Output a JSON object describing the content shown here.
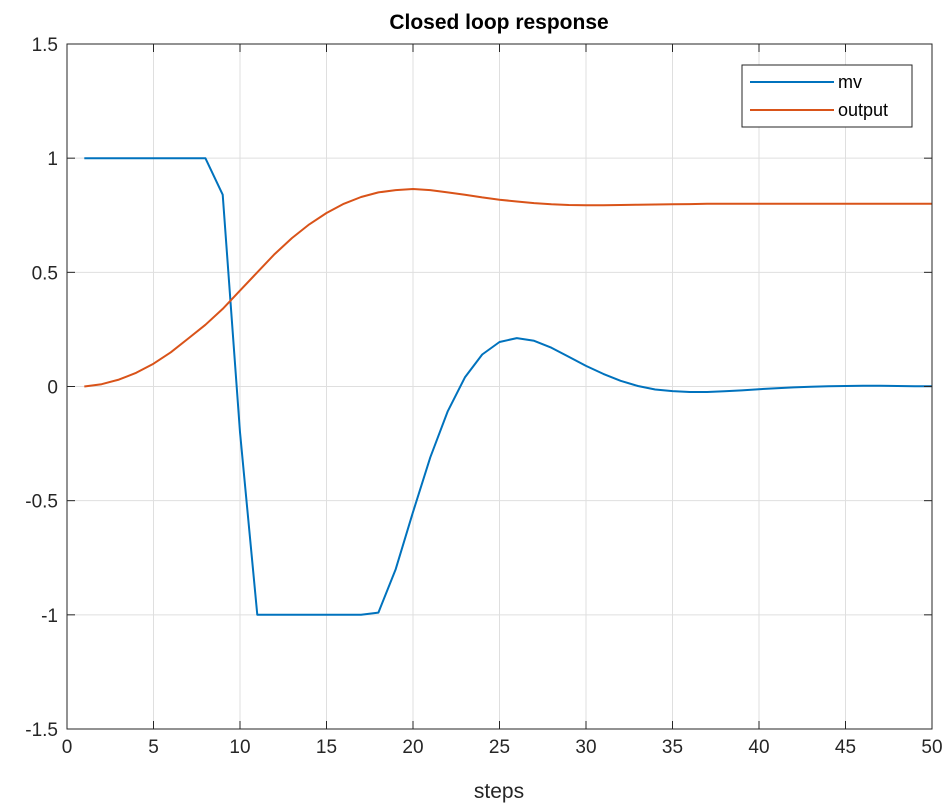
{
  "chart_data": {
    "type": "line",
    "title": "Closed loop response",
    "xlabel": "steps",
    "ylabel": "",
    "xlim": [
      0,
      50
    ],
    "ylim": [
      -1.5,
      1.5
    ],
    "xticks": [
      "0",
      "5",
      "10",
      "15",
      "20",
      "25",
      "30",
      "35",
      "40",
      "45",
      "50"
    ],
    "yticks": [
      "-1.5",
      "-1",
      "-0.5",
      "0",
      "0.5",
      "1",
      "1.5"
    ],
    "grid": true,
    "legend_position": "top-right",
    "series": [
      {
        "name": "mv",
        "color": "#0072bd",
        "x": [
          1,
          2,
          3,
          4,
          5,
          6,
          7,
          8,
          9,
          10,
          11,
          12,
          13,
          14,
          15,
          16,
          17,
          18,
          19,
          20,
          21,
          22,
          23,
          24,
          25,
          26,
          27,
          28,
          29,
          30,
          31,
          32,
          33,
          34,
          35,
          36,
          37,
          38,
          39,
          40,
          41,
          42,
          43,
          44,
          45,
          46,
          47,
          48,
          49,
          50
        ],
        "y": [
          1,
          1,
          1,
          1,
          1,
          1,
          1,
          1,
          0.84,
          -0.2,
          -1,
          -1,
          -1,
          -1,
          -1,
          -1,
          -1,
          -0.99,
          -0.8,
          -0.55,
          -0.31,
          -0.11,
          0.04,
          0.14,
          0.195,
          0.212,
          0.2,
          0.17,
          0.13,
          0.09,
          0.055,
          0.025,
          0.002,
          -0.013,
          -0.02,
          -0.024,
          -0.024,
          -0.021,
          -0.017,
          -0.012,
          -0.008,
          -0.004,
          -0.001,
          0.001,
          0.002,
          0.003,
          0.003,
          0.002,
          0.001,
          0.001
        ]
      },
      {
        "name": "output",
        "color": "#d95319",
        "x": [
          1,
          2,
          3,
          4,
          5,
          6,
          7,
          8,
          9,
          10,
          11,
          12,
          13,
          14,
          15,
          16,
          17,
          18,
          19,
          20,
          21,
          22,
          23,
          24,
          25,
          26,
          27,
          28,
          29,
          30,
          31,
          32,
          33,
          34,
          35,
          36,
          37,
          38,
          39,
          40,
          41,
          42,
          43,
          44,
          45,
          46,
          47,
          48,
          49,
          50
        ],
        "y": [
          0,
          0.01,
          0.03,
          0.06,
          0.1,
          0.15,
          0.21,
          0.27,
          0.34,
          0.42,
          0.5,
          0.58,
          0.65,
          0.71,
          0.76,
          0.8,
          0.83,
          0.85,
          0.86,
          0.865,
          0.86,
          0.85,
          0.84,
          0.828,
          0.818,
          0.81,
          0.803,
          0.798,
          0.795,
          0.794,
          0.794,
          0.795,
          0.796,
          0.797,
          0.798,
          0.799,
          0.8,
          0.8,
          0.8,
          0.8,
          0.8,
          0.8,
          0.8,
          0.8,
          0.8,
          0.8,
          0.8,
          0.8,
          0.8,
          0.8
        ]
      }
    ]
  }
}
